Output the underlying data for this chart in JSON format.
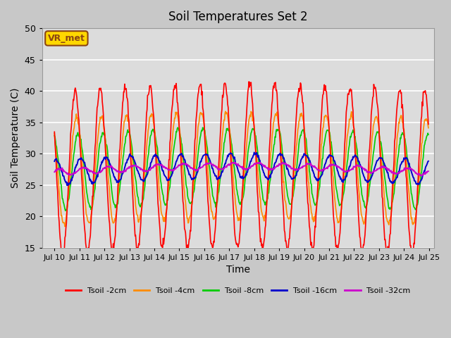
{
  "title": "Soil Temperatures Set 2",
  "xlabel": "Time",
  "ylabel": "Soil Temperature (C)",
  "ylim": [
    15,
    50
  ],
  "xlim_days": [
    9.5,
    25.2
  ],
  "xtick_days": [
    10,
    11,
    12,
    13,
    14,
    15,
    16,
    17,
    18,
    19,
    20,
    21,
    22,
    23,
    24,
    25
  ],
  "xtick_labels": [
    "Jul 10",
    "Jul 11",
    "Jul 12",
    "Jul 13",
    "Jul 14",
    "Jul 15",
    "Jul 16",
    "Jul 17",
    "Jul 18",
    "Jul 19",
    "Jul 20",
    "Jul 21",
    "Jul 22",
    "Jul 23",
    "Jul 24",
    "Jul 25"
  ],
  "ytick_vals": [
    15,
    20,
    25,
    30,
    35,
    40,
    45,
    50
  ],
  "annotation_text": "VR_met",
  "annotation_color": "#8B4513",
  "annotation_bg": "#FFD700",
  "bg_color": "#DCDCDC",
  "line_colors": {
    "Tsoil -2cm": "#FF0000",
    "Tsoil -4cm": "#FF8C00",
    "Tsoil -8cm": "#00CC00",
    "Tsoil -16cm": "#0000CC",
    "Tsoil -32cm": "#CC00CC"
  },
  "amplitudes": {
    "2cm": 13.0,
    "4cm": 8.5,
    "8cm": 6.0,
    "16cm": 2.0,
    "32cm": 0.5
  },
  "phases": {
    "2cm": 0.58,
    "4cm": 0.63,
    "8cm": 0.7,
    "16cm": 0.8,
    "32cm": 0.92
  },
  "base_mean": 27.0,
  "seed": 42,
  "n_points_per_day": 48,
  "n_days": 15,
  "start_day": 10
}
